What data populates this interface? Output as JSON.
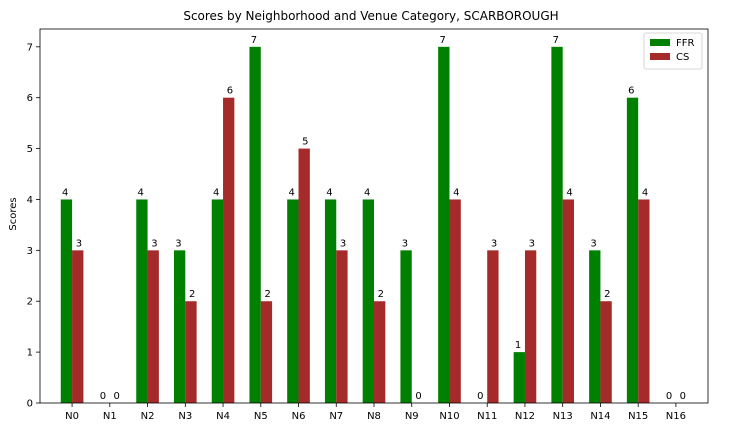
{
  "chart_data": {
    "type": "bar",
    "title": "Scores by Neighborhood and Venue Category, SCARBOROUGH",
    "xlabel": "",
    "ylabel": "Scores",
    "categories": [
      "N0",
      "N1",
      "N2",
      "N3",
      "N4",
      "N5",
      "N6",
      "N7",
      "N8",
      "N9",
      "N10",
      "N11",
      "N12",
      "N13",
      "N14",
      "N15",
      "N16"
    ],
    "series": [
      {
        "name": "FFR",
        "color": "#008000",
        "values": [
          4,
          0,
          4,
          3,
          4,
          7,
          4,
          4,
          4,
          3,
          7,
          0,
          1,
          7,
          3,
          6,
          0
        ]
      },
      {
        "name": "CS",
        "color": "#a52a2a",
        "values": [
          3,
          0,
          3,
          2,
          6,
          2,
          5,
          3,
          2,
          0,
          4,
          3,
          3,
          4,
          2,
          4,
          0
        ]
      }
    ],
    "yticks": [
      0,
      1,
      2,
      3,
      4,
      5,
      6,
      7
    ],
    "ylim": [
      0,
      7.35
    ],
    "grid": false,
    "legend_position": "top-right",
    "data_labels": true
  }
}
